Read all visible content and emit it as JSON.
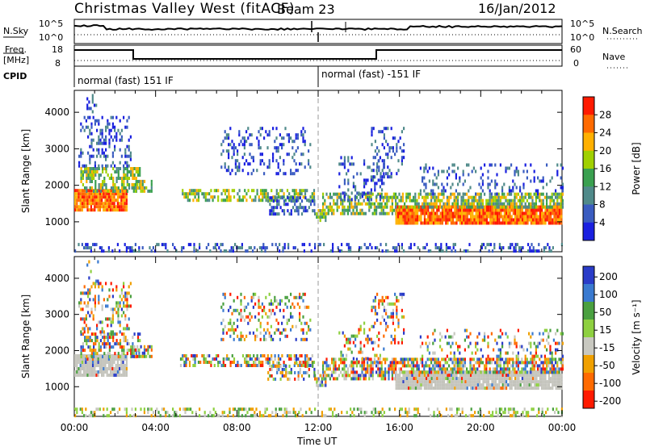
{
  "header": {
    "station": "Christmas Valley West (fitACF)",
    "beam": "Beam 23",
    "date": "16/Jan/2012"
  },
  "noise_panel": {
    "left_label": "N.Sky",
    "right_label": "N.Search",
    "left_ticks": [
      "10^5",
      "10^0"
    ],
    "right_ticks": [
      "10^5",
      "10^0"
    ]
  },
  "freq_panel": {
    "left_label_1": "Freq.",
    "left_label_2": "[MHz]",
    "left_ticks": [
      "18",
      "8"
    ],
    "right_label": "Nave",
    "right_ticks": [
      "60",
      "0"
    ]
  },
  "cpid": {
    "label": "CPID",
    "segments": [
      {
        "start_hour": 0,
        "text": "normal (fast) 151 IF"
      },
      {
        "start_hour": 12,
        "text": "normal (fast) -151 IF"
      }
    ]
  },
  "chart_data": [
    {
      "type": "heatmap",
      "name": "power",
      "ylabel": "Slant Range [km]",
      "yticks": [
        "4000",
        "3000",
        "2000",
        "1000"
      ],
      "ylim": [
        180,
        4600
      ],
      "xlim": [
        0,
        24
      ],
      "colorbar": {
        "label": "Power [dB]",
        "ticks": [
          "28",
          "24",
          "20",
          "16",
          "12",
          "8",
          "4"
        ],
        "colors": [
          "#ff1a00",
          "#ff6a00",
          "#ffb000",
          "#a0d000",
          "#3aa050",
          "#508a8a",
          "#3a5cc0",
          "#1a20e0"
        ]
      }
    },
    {
      "type": "heatmap",
      "name": "velocity",
      "ylabel": "Slant Range [km]",
      "yticks": [
        "4000",
        "3000",
        "2000",
        "1000"
      ],
      "ylim": [
        180,
        4600
      ],
      "xlim": [
        0,
        24
      ],
      "xticks": [
        "00:00",
        "04:00",
        "08:00",
        "12:00",
        "16:00",
        "20:00",
        "00:00"
      ],
      "xlabel": "Time UT",
      "colorbar": {
        "label": "Velocity [m s⁻¹]",
        "ticks": [
          "200",
          "100",
          "50",
          "15",
          "-15",
          "-50",
          "-100",
          "-200"
        ],
        "colors": [
          "#2a3cc8",
          "#3a7ad0",
          "#4aa040",
          "#8ed040",
          "#c8c8c0",
          "#f0a000",
          "#ff6a00",
          "#ff1a00"
        ]
      }
    }
  ],
  "colors": {
    "ground_scatter": "#c4c4bc",
    "power_high": "#ff1a00",
    "power_low": "#1a20e0"
  }
}
